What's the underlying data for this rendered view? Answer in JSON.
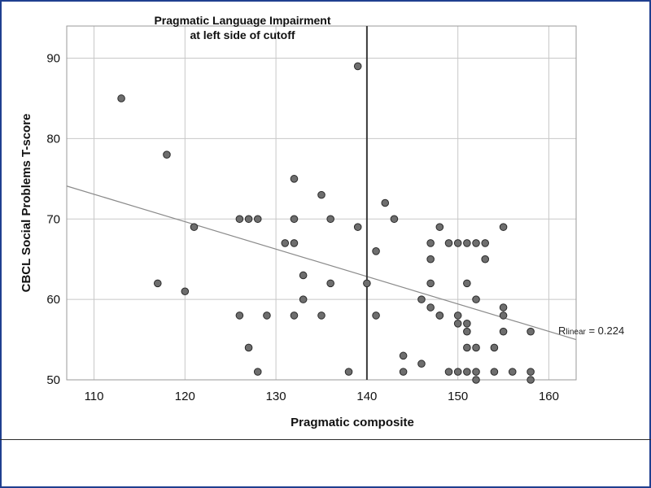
{
  "chart_data": {
    "type": "scatter",
    "xlabel": "Pragmatic composite",
    "ylabel": "CBCL Social Problems T-score",
    "xlim": [
      107,
      163
    ],
    "ylim": [
      50,
      94
    ],
    "x_ticks": [
      110,
      120,
      130,
      140,
      150,
      160
    ],
    "y_ticks": [
      50,
      60,
      70,
      80,
      90
    ],
    "grid": true,
    "points": [
      {
        "x": 113,
        "y": 85
      },
      {
        "x": 117,
        "y": 62
      },
      {
        "x": 118,
        "y": 78
      },
      {
        "x": 120,
        "y": 61
      },
      {
        "x": 121,
        "y": 69
      },
      {
        "x": 126,
        "y": 70
      },
      {
        "x": 126,
        "y": 58
      },
      {
        "x": 127,
        "y": 70
      },
      {
        "x": 127,
        "y": 54
      },
      {
        "x": 128,
        "y": 70
      },
      {
        "x": 128,
        "y": 51
      },
      {
        "x": 129,
        "y": 58
      },
      {
        "x": 131,
        "y": 67
      },
      {
        "x": 132,
        "y": 75
      },
      {
        "x": 132,
        "y": 70
      },
      {
        "x": 132,
        "y": 67
      },
      {
        "x": 132,
        "y": 58
      },
      {
        "x": 133,
        "y": 63
      },
      {
        "x": 133,
        "y": 60
      },
      {
        "x": 135,
        "y": 73
      },
      {
        "x": 135,
        "y": 58
      },
      {
        "x": 136,
        "y": 70
      },
      {
        "x": 136,
        "y": 62
      },
      {
        "x": 138,
        "y": 51
      },
      {
        "x": 139,
        "y": 89
      },
      {
        "x": 139,
        "y": 69
      },
      {
        "x": 140,
        "y": 62
      },
      {
        "x": 141,
        "y": 66
      },
      {
        "x": 141,
        "y": 58
      },
      {
        "x": 142,
        "y": 72
      },
      {
        "x": 143,
        "y": 70
      },
      {
        "x": 144,
        "y": 53
      },
      {
        "x": 144,
        "y": 51
      },
      {
        "x": 146,
        "y": 60
      },
      {
        "x": 146,
        "y": 52
      },
      {
        "x": 147,
        "y": 67
      },
      {
        "x": 147,
        "y": 65
      },
      {
        "x": 147,
        "y": 62
      },
      {
        "x": 147,
        "y": 59
      },
      {
        "x": 148,
        "y": 69
      },
      {
        "x": 148,
        "y": 58
      },
      {
        "x": 148,
        "y": 58
      },
      {
        "x": 149,
        "y": 67
      },
      {
        "x": 149,
        "y": 51
      },
      {
        "x": 150,
        "y": 67
      },
      {
        "x": 150,
        "y": 58
      },
      {
        "x": 150,
        "y": 57
      },
      {
        "x": 150,
        "y": 51
      },
      {
        "x": 151,
        "y": 67
      },
      {
        "x": 151,
        "y": 62
      },
      {
        "x": 151,
        "y": 57
      },
      {
        "x": 151,
        "y": 56
      },
      {
        "x": 151,
        "y": 54
      },
      {
        "x": 151,
        "y": 51
      },
      {
        "x": 152,
        "y": 67
      },
      {
        "x": 152,
        "y": 60
      },
      {
        "x": 152,
        "y": 54
      },
      {
        "x": 152,
        "y": 51
      },
      {
        "x": 152,
        "y": 50
      },
      {
        "x": 153,
        "y": 67
      },
      {
        "x": 153,
        "y": 65
      },
      {
        "x": 154,
        "y": 54
      },
      {
        "x": 154,
        "y": 51
      },
      {
        "x": 155,
        "y": 69
      },
      {
        "x": 155,
        "y": 59
      },
      {
        "x": 155,
        "y": 58
      },
      {
        "x": 155,
        "y": 56
      },
      {
        "x": 156,
        "y": 51
      },
      {
        "x": 158,
        "y": 56
      },
      {
        "x": 158,
        "y": 51
      },
      {
        "x": 158,
        "y": 50
      }
    ],
    "fit_line": {
      "x": [
        107,
        163
      ],
      "y": [
        74.1,
        55.0
      ]
    },
    "cutoff": {
      "x": 140,
      "label_line1": "Pragmatic Language Impairment",
      "label_line2": "at left side of cutoff"
    },
    "r_label": {
      "prefix": "R",
      "subscript": "linear",
      "suffix": " = 0.224"
    },
    "colors": {
      "point_fill": "#6e6e6e",
      "point_stroke": "#2a2a2a",
      "fit_line": "#8a8a8a",
      "cutoff_line": "#3a3a3a",
      "grid": "#c8c8c8"
    }
  }
}
